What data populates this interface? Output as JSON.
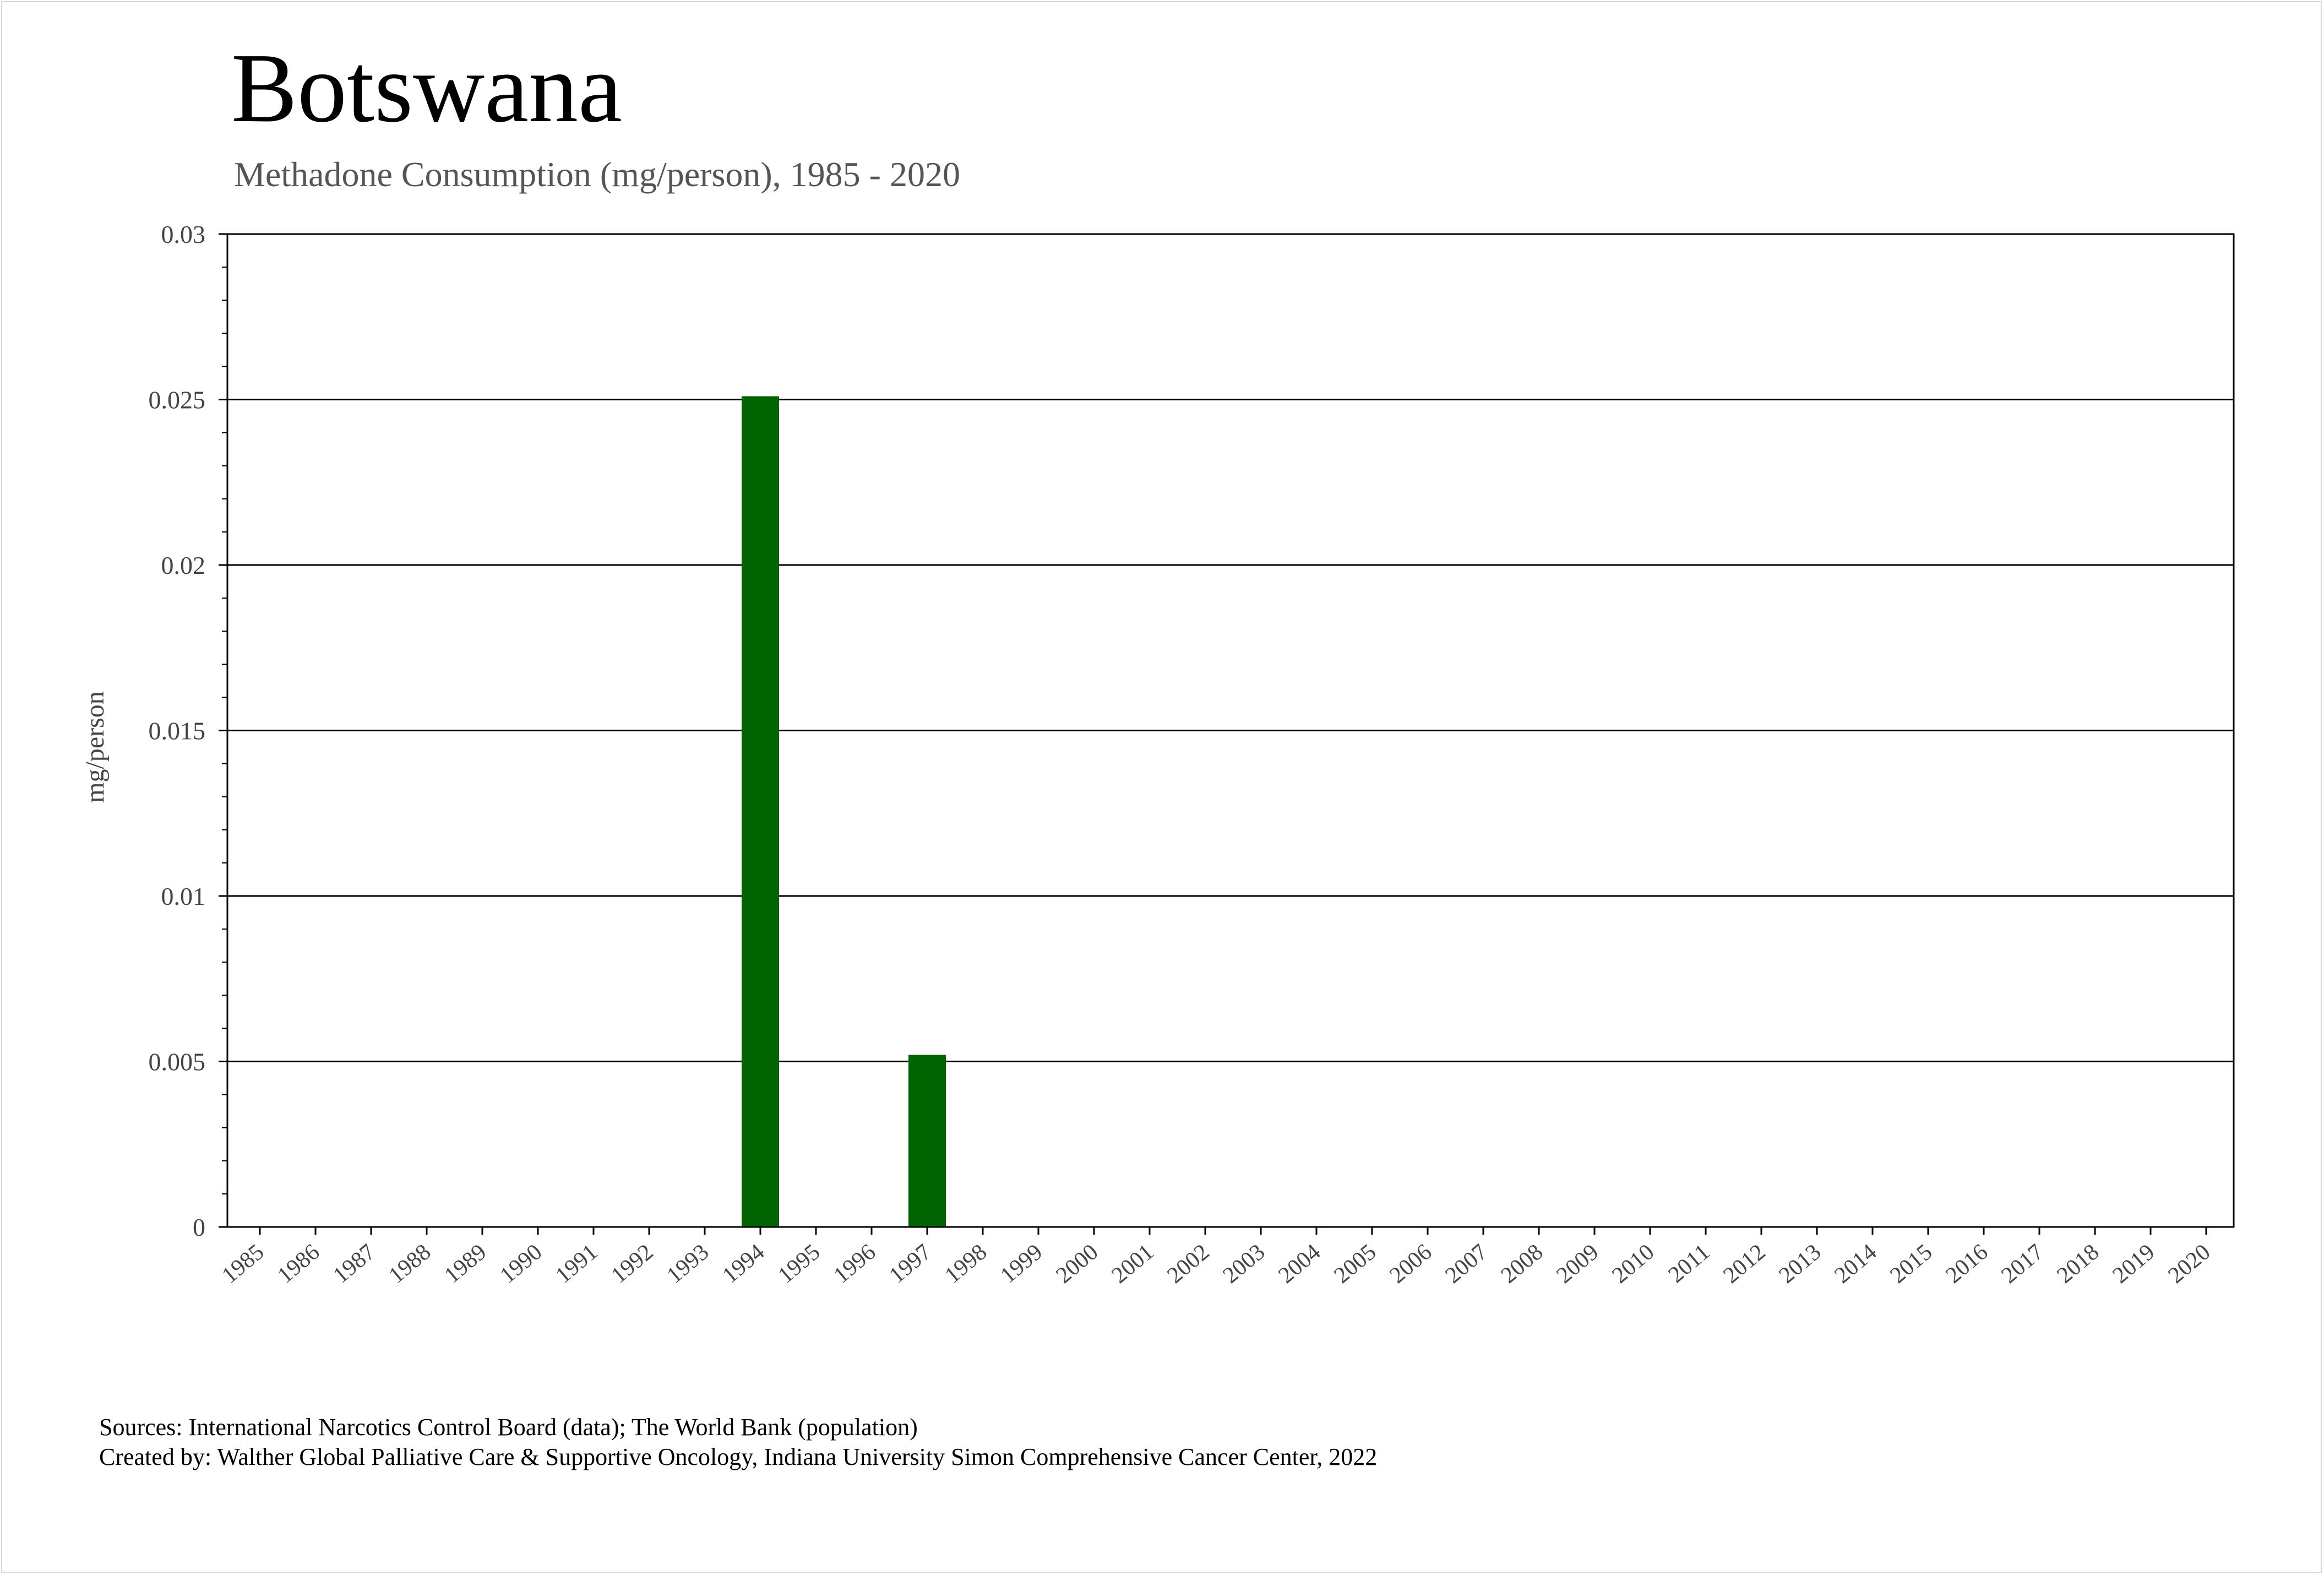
{
  "header": {
    "title": "Botswana",
    "subtitle": "Methadone Consumption (mg/person), 1985 - 2020"
  },
  "footer": {
    "sources": "Sources: International Narcotics Control Board (data); The World Bank (population)",
    "created_by": "Created by: Walther Global Palliative Care & Supportive Oncology, Indiana University Simon Comprehensive Cancer Center, 2022"
  },
  "chart_data": {
    "type": "bar",
    "title": "Botswana",
    "subtitle": "Methadone Consumption (mg/person), 1985 - 2020",
    "xlabel": "",
    "ylabel": "mg/person",
    "ylim": [
      0,
      0.03
    ],
    "yticks": [
      0,
      0.005,
      0.01,
      0.015,
      0.02,
      0.025,
      0.03
    ],
    "ytick_labels": [
      "0",
      "0.005",
      "0.01",
      "0.015",
      "0.02",
      "0.025",
      "0.03"
    ],
    "grid": true,
    "legend": "none",
    "bar_color": "#006400",
    "categories": [
      "1985",
      "1986",
      "1987",
      "1988",
      "1989",
      "1990",
      "1991",
      "1992",
      "1993",
      "1994",
      "1995",
      "1996",
      "1997",
      "1998",
      "1999",
      "2000",
      "2001",
      "2002",
      "2003",
      "2004",
      "2005",
      "2006",
      "2007",
      "2008",
      "2009",
      "2010",
      "2011",
      "2012",
      "2013",
      "2014",
      "2015",
      "2016",
      "2017",
      "2018",
      "2019",
      "2020"
    ],
    "values": [
      0,
      0,
      0,
      0,
      0,
      0,
      0,
      0,
      0,
      0.0251,
      0,
      0,
      0.0052,
      0,
      0,
      0,
      0,
      0,
      0,
      0,
      0,
      0,
      0,
      0,
      0,
      0,
      0,
      0,
      0,
      0,
      0,
      0,
      0,
      0,
      0,
      0
    ]
  }
}
